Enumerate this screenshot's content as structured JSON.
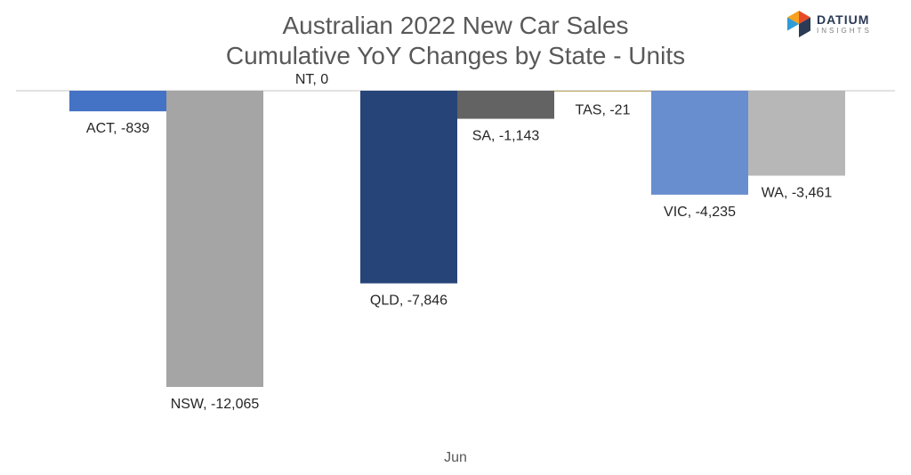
{
  "chart_data": {
    "type": "bar",
    "title_lines": [
      "Australian 2022 New Car Sales",
      "Cumulative YoY Changes by State - Units"
    ],
    "categories": [
      "Jun"
    ],
    "series": [
      {
        "name": "ACT",
        "values": [
          -839
        ],
        "color": "#4472c4",
        "label": "ACT, -839"
      },
      {
        "name": "NSW",
        "values": [
          -12065
        ],
        "color": "#a5a5a5",
        "label": "NSW, -12,065"
      },
      {
        "name": "NT",
        "values": [
          0
        ],
        "color": "#ffc000",
        "label": "NT, 0"
      },
      {
        "name": "QLD",
        "values": [
          -7846
        ],
        "color": "#264478",
        "label": "QLD, -7,846"
      },
      {
        "name": "SA",
        "values": [
          -1143
        ],
        "color": "#636363",
        "label": "SA, -1,143"
      },
      {
        "name": "TAS",
        "values": [
          -21
        ],
        "color": "#997300",
        "label": "TAS, -21"
      },
      {
        "name": "VIC",
        "values": [
          -4235
        ],
        "color": "#698ed0",
        "label": "VIC, -4,235"
      },
      {
        "name": "WA",
        "values": [
          -3461
        ],
        "color": "#b7b7b7",
        "label": "WA, -3,461"
      }
    ],
    "ylim": [
      -13500,
      0
    ],
    "grid": false,
    "legend": "none"
  },
  "logo": {
    "name": "DATIUM",
    "subtitle": "INSIGHTS",
    "colors": [
      "#e84a27",
      "#f7a01c",
      "#2e9bd6",
      "#2b3a55"
    ]
  }
}
